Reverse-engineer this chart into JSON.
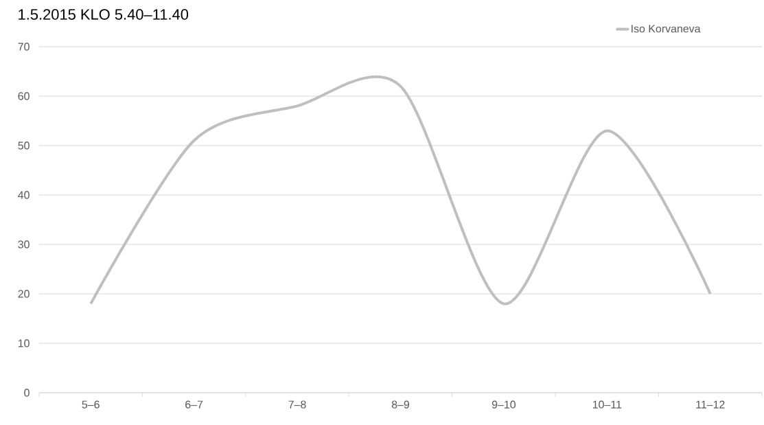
{
  "chart_data": {
    "type": "line",
    "title": "1.5.2015 KLO 5.40–11.40",
    "categories": [
      "5–6",
      "6–7",
      "7–8",
      "8–9",
      "9–10",
      "10–11",
      "11–12"
    ],
    "series": [
      {
        "name": "Iso Korvaneva",
        "color": "#bfbfbf",
        "values": [
          18,
          51,
          58,
          62,
          18,
          53,
          20
        ]
      }
    ],
    "ylim": [
      0,
      70
    ],
    "yticks": [
      0,
      10,
      20,
      30,
      40,
      50,
      60,
      70
    ],
    "grid": "y",
    "legend": "top right",
    "marker": "none",
    "line_style": "solid"
  }
}
